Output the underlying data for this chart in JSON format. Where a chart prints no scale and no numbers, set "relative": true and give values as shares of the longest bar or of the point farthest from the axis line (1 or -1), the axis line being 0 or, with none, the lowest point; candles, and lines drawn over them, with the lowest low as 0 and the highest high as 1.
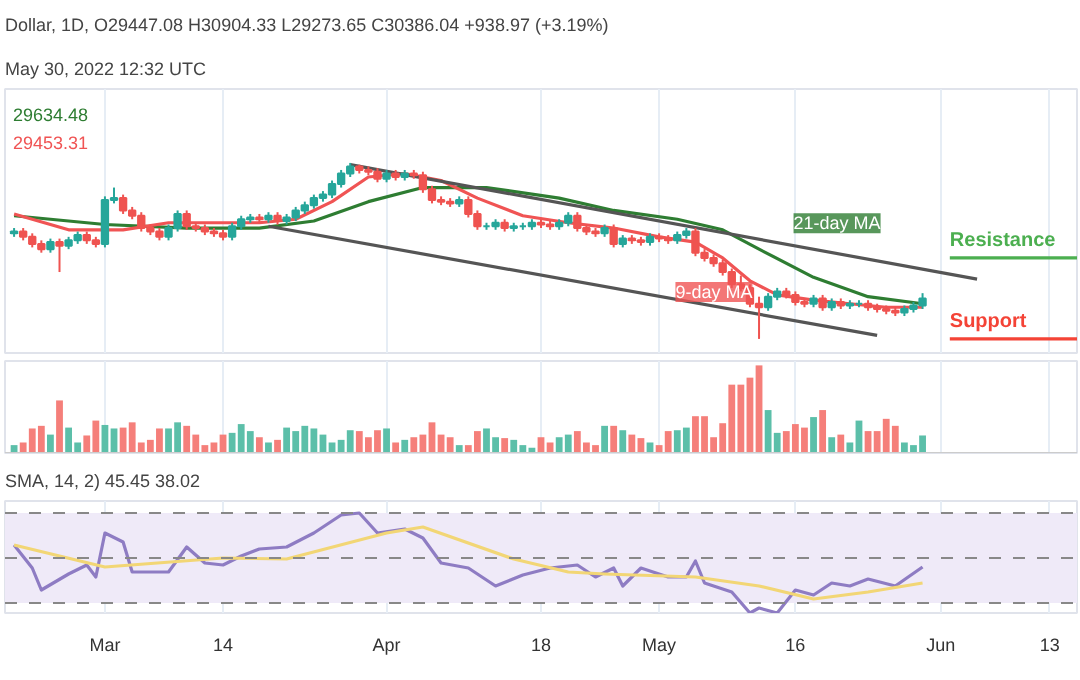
{
  "chart_data": [
    {
      "type": "candlestick",
      "relative": true,
      "title": "Dollar, 1D, O29447.08 H30904.33 L29273.65 C30386.04 +938.97 (+3.19%)",
      "subtitle": "May 30, 2022 12:32 UTC",
      "annotations": [
        "29634.48",
        "29453.31"
      ],
      "xlim": [
        "2022-02-18",
        "2022-06-16"
      ],
      "xticks": [
        {
          "value": "2022-03-01",
          "label": null
        },
        {
          "value": "2022-03-14",
          "label": null
        },
        {
          "value": "2022-04-01",
          "label": null
        },
        {
          "value": "2022-04-18",
          "label": null
        },
        {
          "value": "2022-05-01",
          "label": null
        },
        {
          "value": "2022-05-16",
          "label": null
        },
        {
          "value": "2022-06-01",
          "label": null
        },
        {
          "value": "2022-06-13",
          "label": null
        }
      ],
      "tick_labels": false,
      "grid": "x",
      "x": [
        "2022-02-19",
        "2022-02-20",
        "2022-02-21",
        "2022-02-22",
        "2022-02-23",
        "2022-02-24",
        "2022-02-25",
        "2022-02-26",
        "2022-02-27",
        "2022-02-28",
        "2022-03-01",
        "2022-03-02",
        "2022-03-03",
        "2022-03-04",
        "2022-03-05",
        "2022-03-06",
        "2022-03-07",
        "2022-03-08",
        "2022-03-09",
        "2022-03-10",
        "2022-03-11",
        "2022-03-12",
        "2022-03-13",
        "2022-03-14",
        "2022-03-15",
        "2022-03-16",
        "2022-03-17",
        "2022-03-18",
        "2022-03-19",
        "2022-03-20",
        "2022-03-21",
        "2022-03-22",
        "2022-03-23",
        "2022-03-24",
        "2022-03-25",
        "2022-03-26",
        "2022-03-27",
        "2022-03-28",
        "2022-03-29",
        "2022-03-30",
        "2022-03-31",
        "2022-04-01",
        "2022-04-02",
        "2022-04-03",
        "2022-04-04",
        "2022-04-05",
        "2022-04-06",
        "2022-04-07",
        "2022-04-08",
        "2022-04-09",
        "2022-04-10",
        "2022-04-11",
        "2022-04-12",
        "2022-04-13",
        "2022-04-14",
        "2022-04-15",
        "2022-04-16",
        "2022-04-17",
        "2022-04-18",
        "2022-04-19",
        "2022-04-20",
        "2022-04-21",
        "2022-04-22",
        "2022-04-23",
        "2022-04-24",
        "2022-04-25",
        "2022-04-26",
        "2022-04-27",
        "2022-04-28",
        "2022-04-29",
        "2022-04-30",
        "2022-05-01",
        "2022-05-02",
        "2022-05-03",
        "2022-05-04",
        "2022-05-05",
        "2022-05-06",
        "2022-05-07",
        "2022-05-08",
        "2022-05-09",
        "2022-05-10",
        "2022-05-11",
        "2022-05-12",
        "2022-05-13",
        "2022-05-14",
        "2022-05-15",
        "2022-05-16",
        "2022-05-17",
        "2022-05-18",
        "2022-05-19",
        "2022-05-20",
        "2022-05-21",
        "2022-05-22",
        "2022-05-23",
        "2022-05-24",
        "2022-05-25",
        "2022-05-26",
        "2022-05-27",
        "2022-05-28",
        "2022-05-29",
        "2022-05-30"
      ],
      "ohlc": [
        [
          0.6,
          0.63,
          0.58,
          0.61
        ],
        [
          0.61,
          0.63,
          0.56,
          0.58
        ],
        [
          0.58,
          0.6,
          0.52,
          0.54
        ],
        [
          0.54,
          0.56,
          0.49,
          0.51
        ],
        [
          0.51,
          0.57,
          0.49,
          0.55
        ],
        [
          0.55,
          0.57,
          0.38,
          0.53
        ],
        [
          0.53,
          0.58,
          0.51,
          0.56
        ],
        [
          0.56,
          0.61,
          0.54,
          0.59
        ],
        [
          0.59,
          0.61,
          0.54,
          0.56
        ],
        [
          0.56,
          0.58,
          0.52,
          0.54
        ],
        [
          0.54,
          0.81,
          0.52,
          0.79
        ],
        [
          0.79,
          0.86,
          0.77,
          0.8
        ],
        [
          0.8,
          0.82,
          0.71,
          0.73
        ],
        [
          0.73,
          0.75,
          0.68,
          0.7
        ],
        [
          0.7,
          0.72,
          0.61,
          0.63
        ],
        [
          0.63,
          0.65,
          0.59,
          0.61
        ],
        [
          0.61,
          0.63,
          0.56,
          0.58
        ],
        [
          0.58,
          0.65,
          0.56,
          0.63
        ],
        [
          0.63,
          0.73,
          0.61,
          0.71
        ],
        [
          0.71,
          0.73,
          0.62,
          0.64
        ],
        [
          0.64,
          0.66,
          0.61,
          0.63
        ],
        [
          0.63,
          0.65,
          0.59,
          0.61
        ],
        [
          0.61,
          0.63,
          0.58,
          0.6
        ],
        [
          0.6,
          0.62,
          0.56,
          0.58
        ],
        [
          0.58,
          0.66,
          0.56,
          0.64
        ],
        [
          0.64,
          0.7,
          0.62,
          0.68
        ],
        [
          0.68,
          0.71,
          0.66,
          0.69
        ],
        [
          0.69,
          0.71,
          0.66,
          0.68
        ],
        [
          0.68,
          0.72,
          0.66,
          0.7
        ],
        [
          0.7,
          0.72,
          0.65,
          0.67
        ],
        [
          0.67,
          0.71,
          0.65,
          0.69
        ],
        [
          0.69,
          0.75,
          0.67,
          0.73
        ],
        [
          0.73,
          0.78,
          0.71,
          0.76
        ],
        [
          0.76,
          0.82,
          0.74,
          0.8
        ],
        [
          0.8,
          0.84,
          0.78,
          0.82
        ],
        [
          0.82,
          0.9,
          0.8,
          0.88
        ],
        [
          0.88,
          0.96,
          0.86,
          0.94
        ],
        [
          0.94,
          1.0,
          0.92,
          0.98
        ],
        [
          0.98,
          0.99,
          0.94,
          0.96
        ],
        [
          0.96,
          0.98,
          0.93,
          0.95
        ],
        [
          0.95,
          0.97,
          0.89,
          0.91
        ],
        [
          0.91,
          0.96,
          0.89,
          0.94
        ],
        [
          0.94,
          0.96,
          0.9,
          0.92
        ],
        [
          0.92,
          0.96,
          0.9,
          0.94
        ],
        [
          0.94,
          0.96,
          0.91,
          0.93
        ],
        [
          0.93,
          0.95,
          0.83,
          0.85
        ],
        [
          0.85,
          0.87,
          0.77,
          0.79
        ],
        [
          0.79,
          0.81,
          0.76,
          0.78
        ],
        [
          0.78,
          0.8,
          0.75,
          0.77
        ],
        [
          0.77,
          0.81,
          0.75,
          0.79
        ],
        [
          0.79,
          0.81,
          0.69,
          0.71
        ],
        [
          0.71,
          0.73,
          0.62,
          0.64
        ],
        [
          0.64,
          0.66,
          0.62,
          0.64
        ],
        [
          0.64,
          0.68,
          0.62,
          0.66
        ],
        [
          0.66,
          0.68,
          0.61,
          0.63
        ],
        [
          0.63,
          0.66,
          0.61,
          0.64
        ],
        [
          0.64,
          0.66,
          0.62,
          0.64
        ],
        [
          0.64,
          0.68,
          0.62,
          0.66
        ],
        [
          0.66,
          0.68,
          0.63,
          0.65
        ],
        [
          0.65,
          0.67,
          0.62,
          0.64
        ],
        [
          0.64,
          0.68,
          0.62,
          0.66
        ],
        [
          0.66,
          0.72,
          0.64,
          0.7
        ],
        [
          0.7,
          0.72,
          0.61,
          0.63
        ],
        [
          0.63,
          0.65,
          0.59,
          0.61
        ],
        [
          0.61,
          0.63,
          0.58,
          0.6
        ],
        [
          0.6,
          0.65,
          0.58,
          0.63
        ],
        [
          0.63,
          0.65,
          0.52,
          0.54
        ],
        [
          0.54,
          0.59,
          0.52,
          0.57
        ],
        [
          0.57,
          0.59,
          0.54,
          0.56
        ],
        [
          0.56,
          0.58,
          0.53,
          0.55
        ],
        [
          0.55,
          0.6,
          0.53,
          0.58
        ],
        [
          0.58,
          0.6,
          0.55,
          0.57
        ],
        [
          0.57,
          0.59,
          0.54,
          0.56
        ],
        [
          0.56,
          0.61,
          0.54,
          0.59
        ],
        [
          0.59,
          0.63,
          0.57,
          0.61
        ],
        [
          0.61,
          0.63,
          0.47,
          0.49
        ],
        [
          0.49,
          0.51,
          0.44,
          0.46
        ],
        [
          0.46,
          0.48,
          0.41,
          0.43
        ],
        [
          0.43,
          0.45,
          0.36,
          0.38
        ],
        [
          0.38,
          0.4,
          0.29,
          0.31
        ],
        [
          0.31,
          0.36,
          0.27,
          0.29
        ],
        [
          0.29,
          0.31,
          0.18,
          0.2
        ],
        [
          0.2,
          0.24,
          0.0,
          0.18
        ],
        [
          0.18,
          0.26,
          0.16,
          0.24
        ],
        [
          0.24,
          0.29,
          0.22,
          0.27
        ],
        [
          0.27,
          0.29,
          0.23,
          0.25
        ],
        [
          0.25,
          0.27,
          0.19,
          0.21
        ],
        [
          0.21,
          0.23,
          0.18,
          0.2
        ],
        [
          0.2,
          0.25,
          0.18,
          0.23
        ],
        [
          0.23,
          0.25,
          0.16,
          0.18
        ],
        [
          0.18,
          0.23,
          0.16,
          0.21
        ],
        [
          0.21,
          0.23,
          0.17,
          0.19
        ],
        [
          0.19,
          0.22,
          0.17,
          0.2
        ],
        [
          0.2,
          0.22,
          0.18,
          0.2
        ],
        [
          0.2,
          0.22,
          0.16,
          0.18
        ],
        [
          0.18,
          0.2,
          0.15,
          0.17
        ],
        [
          0.17,
          0.19,
          0.14,
          0.16
        ],
        [
          0.16,
          0.18,
          0.13,
          0.15
        ],
        [
          0.15,
          0.19,
          0.13,
          0.17
        ],
        [
          0.17,
          0.21,
          0.15,
          0.19
        ],
        [
          0.19,
          0.26,
          0.17,
          0.23
        ]
      ],
      "series": [
        {
          "type": "line",
          "name": "21-day MA",
          "color": "#2e7d32",
          "x": [
            "2022-02-19",
            "2022-03-01",
            "2022-03-10",
            "2022-03-18",
            "2022-03-24",
            "2022-03-30",
            "2022-04-05",
            "2022-04-12",
            "2022-04-20",
            "2022-04-26",
            "2022-05-03",
            "2022-05-08",
            "2022-05-12",
            "2022-05-18",
            "2022-05-24",
            "2022-05-30"
          ],
          "values": [
            0.7,
            0.65,
            0.63,
            0.63,
            0.67,
            0.78,
            0.86,
            0.86,
            0.8,
            0.73,
            0.68,
            0.62,
            0.51,
            0.35,
            0.24,
            0.2
          ]
        },
        {
          "type": "line",
          "name": "9-day MA",
          "color": "#f05454",
          "x": [
            "2022-02-19",
            "2022-02-25",
            "2022-03-03",
            "2022-03-08",
            "2022-03-14",
            "2022-03-18",
            "2022-03-22",
            "2022-03-26",
            "2022-03-30",
            "2022-04-03",
            "2022-04-07",
            "2022-04-11",
            "2022-04-16",
            "2022-04-21",
            "2022-04-26",
            "2022-05-01",
            "2022-05-05",
            "2022-05-08",
            "2022-05-11",
            "2022-05-14",
            "2022-05-18",
            "2022-05-22",
            "2022-05-26",
            "2022-05-30"
          ],
          "values": [
            0.71,
            0.62,
            0.62,
            0.66,
            0.66,
            0.66,
            0.68,
            0.78,
            0.92,
            0.94,
            0.9,
            0.8,
            0.7,
            0.66,
            0.63,
            0.58,
            0.55,
            0.46,
            0.33,
            0.25,
            0.22,
            0.2,
            0.18,
            0.18
          ]
        },
        {
          "type": "line",
          "color": "#555555",
          "x": [
            "2022-03-28",
            "2022-06-05"
          ],
          "values": [
            0.99,
            0.34
          ]
        },
        {
          "type": "line",
          "color": "#555555",
          "x": [
            "2022-03-19",
            "2022-05-25"
          ],
          "values": [
            0.64,
            0.02
          ]
        }
      ],
      "ref_lines": [
        {
          "axis": "y",
          "value": 0.46,
          "label": "Resistance",
          "color": "#4caf50"
        },
        {
          "axis": "y",
          "value": 0.0,
          "label": "Support",
          "color": "#f44336"
        }
      ]
    },
    {
      "type": "bar",
      "relative": true,
      "tick_labels": false,
      "grid": "x",
      "xlim": [
        "2022-02-18",
        "2022-06-16"
      ],
      "xticks": [
        {
          "value": "2022-03-01",
          "label": null
        },
        {
          "value": "2022-03-14",
          "label": null
        },
        {
          "value": "2022-04-01",
          "label": null
        },
        {
          "value": "2022-04-18",
          "label": null
        },
        {
          "value": "2022-05-01",
          "label": null
        },
        {
          "value": "2022-05-16",
          "label": null
        },
        {
          "value": "2022-06-01",
          "label": null
        },
        {
          "value": "2022-06-13",
          "label": null
        }
      ],
      "x": [
        "2022-02-19",
        "2022-02-20",
        "2022-02-21",
        "2022-02-22",
        "2022-02-23",
        "2022-02-24",
        "2022-02-25",
        "2022-02-26",
        "2022-02-27",
        "2022-02-28",
        "2022-03-01",
        "2022-03-02",
        "2022-03-03",
        "2022-03-04",
        "2022-03-05",
        "2022-03-06",
        "2022-03-07",
        "2022-03-08",
        "2022-03-09",
        "2022-03-10",
        "2022-03-11",
        "2022-03-12",
        "2022-03-13",
        "2022-03-14",
        "2022-03-15",
        "2022-03-16",
        "2022-03-17",
        "2022-03-18",
        "2022-03-19",
        "2022-03-20",
        "2022-03-21",
        "2022-03-22",
        "2022-03-23",
        "2022-03-24",
        "2022-03-25",
        "2022-03-26",
        "2022-03-27",
        "2022-03-28",
        "2022-03-29",
        "2022-03-30",
        "2022-03-31",
        "2022-04-01",
        "2022-04-02",
        "2022-04-03",
        "2022-04-04",
        "2022-04-05",
        "2022-04-06",
        "2022-04-07",
        "2022-04-08",
        "2022-04-09",
        "2022-04-10",
        "2022-04-11",
        "2022-04-12",
        "2022-04-13",
        "2022-04-14",
        "2022-04-15",
        "2022-04-16",
        "2022-04-17",
        "2022-04-18",
        "2022-04-19",
        "2022-04-20",
        "2022-04-21",
        "2022-04-22",
        "2022-04-23",
        "2022-04-24",
        "2022-04-25",
        "2022-04-26",
        "2022-04-27",
        "2022-04-28",
        "2022-04-29",
        "2022-04-30",
        "2022-05-01",
        "2022-05-02",
        "2022-05-03",
        "2022-05-04",
        "2022-05-05",
        "2022-05-06",
        "2022-05-07",
        "2022-05-08",
        "2022-05-09",
        "2022-05-10",
        "2022-05-11",
        "2022-05-12",
        "2022-05-13",
        "2022-05-14",
        "2022-05-15",
        "2022-05-16",
        "2022-05-17",
        "2022-05-18",
        "2022-05-19",
        "2022-05-20",
        "2022-05-21",
        "2022-05-22",
        "2022-05-23",
        "2022-05-24",
        "2022-05-25",
        "2022-05-26",
        "2022-05-27",
        "2022-05-28",
        "2022-05-29",
        "2022-05-30"
      ],
      "values": [
        0.09,
        0.12,
        0.28,
        0.31,
        0.21,
        0.6,
        0.29,
        0.12,
        0.2,
        0.37,
        0.32,
        0.28,
        0.29,
        0.35,
        0.12,
        0.15,
        0.28,
        0.28,
        0.35,
        0.31,
        0.21,
        0.09,
        0.12,
        0.21,
        0.23,
        0.33,
        0.25,
        0.18,
        0.12,
        0.15,
        0.29,
        0.25,
        0.31,
        0.28,
        0.21,
        0.12,
        0.15,
        0.26,
        0.25,
        0.18,
        0.26,
        0.28,
        0.12,
        0.15,
        0.18,
        0.21,
        0.35,
        0.21,
        0.18,
        0.09,
        0.09,
        0.25,
        0.28,
        0.18,
        0.17,
        0.15,
        0.09,
        0.06,
        0.18,
        0.12,
        0.18,
        0.21,
        0.25,
        0.12,
        0.09,
        0.31,
        0.31,
        0.26,
        0.21,
        0.17,
        0.12,
        0.09,
        0.25,
        0.26,
        0.29,
        0.42,
        0.42,
        0.18,
        0.34,
        0.78,
        0.78,
        0.86,
        1,
        0.49,
        0.23,
        0.25,
        0.33,
        0.29,
        0.41,
        0.49,
        0.18,
        0.21,
        0.12,
        0.37,
        0.25,
        0.25,
        0.39,
        0.31,
        0.12,
        0.09,
        0.2
      ],
      "colors": [
        "#5cbfa9",
        "#f57f7a",
        "#f57f7a",
        "#f57f7a",
        "#5cbfa9",
        "#f57f7a",
        "#5cbfa9",
        "#5cbfa9",
        "#f57f7a",
        "#f57f7a",
        "#5cbfa9",
        "#5cbfa9",
        "#f57f7a",
        "#f57f7a",
        "#f57f7a",
        "#f57f7a",
        "#f57f7a",
        "#5cbfa9",
        "#5cbfa9",
        "#f57f7a",
        "#f57f7a",
        "#f57f7a",
        "#f57f7a",
        "#f57f7a",
        "#5cbfa9",
        "#5cbfa9",
        "#5cbfa9",
        "#f57f7a",
        "#5cbfa9",
        "#f57f7a",
        "#5cbfa9",
        "#5cbfa9",
        "#5cbfa9",
        "#5cbfa9",
        "#5cbfa9",
        "#5cbfa9",
        "#5cbfa9",
        "#5cbfa9",
        "#f57f7a",
        "#f57f7a",
        "#f57f7a",
        "#5cbfa9",
        "#f57f7a",
        "#5cbfa9",
        "#f57f7a",
        "#f57f7a",
        "#f57f7a",
        "#f57f7a",
        "#f57f7a",
        "#5cbfa9",
        "#f57f7a",
        "#f57f7a",
        "#5cbfa9",
        "#5cbfa9",
        "#f57f7a",
        "#5cbfa9",
        "#5cbfa9",
        "#5cbfa9",
        "#f57f7a",
        "#f57f7a",
        "#5cbfa9",
        "#5cbfa9",
        "#f57f7a",
        "#f57f7a",
        "#f57f7a",
        "#5cbfa9",
        "#f57f7a",
        "#5cbfa9",
        "#f57f7a",
        "#f57f7a",
        "#5cbfa9",
        "#f57f7a",
        "#f57f7a",
        "#5cbfa9",
        "#5cbfa9",
        "#f57f7a",
        "#f57f7a",
        "#f57f7a",
        "#f57f7a",
        "#f57f7a",
        "#f57f7a",
        "#f57f7a",
        "#f57f7a",
        "#5cbfa9",
        "#5cbfa9",
        "#f57f7a",
        "#f57f7a",
        "#f57f7a",
        "#5cbfa9",
        "#f57f7a",
        "#5cbfa9",
        "#f57f7a",
        "#5cbfa9",
        "#5cbfa9",
        "#f57f7a",
        "#f57f7a",
        "#f57f7a",
        "#f57f7a",
        "#5cbfa9",
        "#5cbfa9",
        "#5cbfa9"
      ]
    },
    {
      "type": "line",
      "relative": true,
      "title": "SMA, 14, 2) 45.45 38.02",
      "tick_labels": "x",
      "grid": "x",
      "xlim": [
        "2022-02-18",
        "2022-06-16"
      ],
      "xticks": [
        {
          "value": "2022-03-01",
          "label": "Mar"
        },
        {
          "value": "2022-03-14",
          "label": "14"
        },
        {
          "value": "2022-04-01",
          "label": "Apr"
        },
        {
          "value": "2022-04-18",
          "label": "18"
        },
        {
          "value": "2022-05-01",
          "label": "May"
        },
        {
          "value": "2022-05-16",
          "label": "16"
        },
        {
          "value": "2022-06-01",
          "label": "Jun"
        },
        {
          "value": "2022-06-13",
          "label": "13"
        }
      ],
      "series": [
        {
          "color": "#8e7cc3",
          "x": [
            "2022-02-19",
            "2022-02-21",
            "2022-02-22",
            "2022-02-25",
            "2022-02-27",
            "2022-02-28",
            "2022-03-01",
            "2022-03-03",
            "2022-03-04",
            "2022-03-08",
            "2022-03-10",
            "2022-03-12",
            "2022-03-14",
            "2022-03-16",
            "2022-03-18",
            "2022-03-21",
            "2022-03-24",
            "2022-03-27",
            "2022-03-29",
            "2022-03-31",
            "2022-04-03",
            "2022-04-05",
            "2022-04-07",
            "2022-04-10",
            "2022-04-13",
            "2022-04-16",
            "2022-04-19",
            "2022-04-22",
            "2022-04-24",
            "2022-04-26",
            "2022-04-27",
            "2022-04-29",
            "2022-05-02",
            "2022-05-04",
            "2022-05-05",
            "2022-05-06",
            "2022-05-09",
            "2022-05-11",
            "2022-05-12",
            "2022-05-14",
            "2022-05-16",
            "2022-05-18",
            "2022-05-20",
            "2022-05-22",
            "2022-05-24",
            "2022-05-27",
            "2022-05-30"
          ],
          "values": [
            0.68,
            0.45,
            0.23,
            0.39,
            0.48,
            0.36,
            0.8,
            0.71,
            0.41,
            0.41,
            0.66,
            0.5,
            0.48,
            0.57,
            0.64,
            0.66,
            0.8,
            0.98,
            1,
            0.8,
            0.84,
            0.75,
            0.5,
            0.45,
            0.27,
            0.38,
            0.45,
            0.48,
            0.36,
            0.45,
            0.27,
            0.45,
            0.36,
            0.36,
            0.52,
            0.3,
            0.21,
            0,
            0.05,
            0,
            0.23,
            0.18,
            0.3,
            0.27,
            0.34,
            0.27,
            0.46
          ]
        },
        {
          "color": "#f2d675",
          "x": [
            "2022-02-19",
            "2022-03-01",
            "2022-03-14",
            "2022-03-21",
            "2022-04-01",
            "2022-04-05",
            "2022-04-15",
            "2022-04-21",
            "2022-04-25",
            "2022-05-05",
            "2022-05-12",
            "2022-05-18",
            "2022-05-24",
            "2022-05-30"
          ],
          "values": [
            0.68,
            0.46,
            0.55,
            0.54,
            0.8,
            0.86,
            0.54,
            0.41,
            0.39,
            0.36,
            0.27,
            0.14,
            0.21,
            0.3
          ]
        }
      ],
      "ref_lines": [
        {
          "axis": "y",
          "value": 1.0,
          "color": "#888888",
          "line_style": "dashed"
        },
        {
          "axis": "y",
          "value": 0.55,
          "color": "#888888",
          "line_style": "dashed"
        },
        {
          "axis": "y",
          "value": 0.1,
          "color": "#888888",
          "line_style": "dashed"
        }
      ],
      "bands": [
        {
          "axis": "y",
          "from": 0.1,
          "to": 1.0,
          "color": "#efeaf8"
        }
      ]
    }
  ]
}
